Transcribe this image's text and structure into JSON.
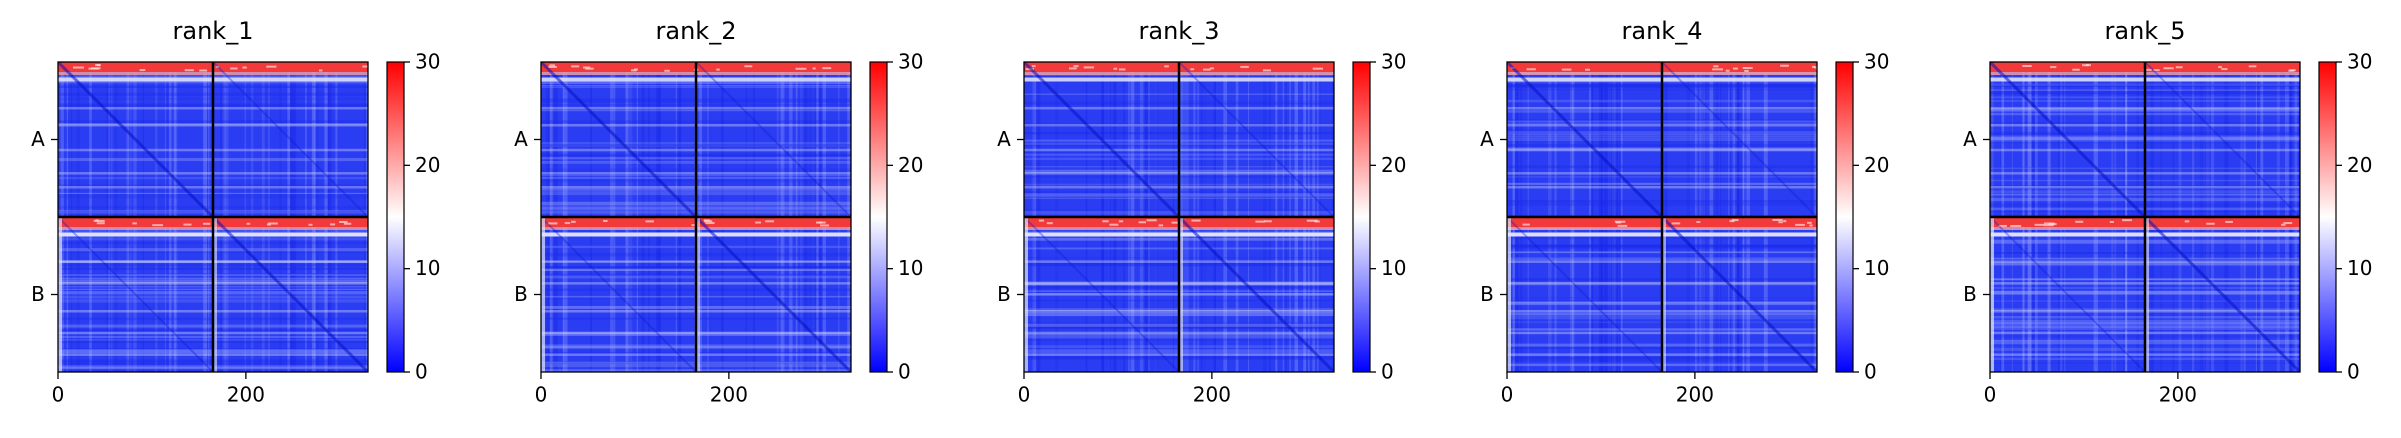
{
  "chart_data": [
    {
      "type": "heatmap",
      "title": "rank_1",
      "x_ticks": [
        0,
        200
      ],
      "y_tick_labels": [
        "A",
        "B"
      ],
      "chain_boundary": 165,
      "xlim": [
        0,
        330
      ],
      "colorbar": {
        "ticks": [
          0,
          10,
          20,
          30
        ],
        "range": [
          0,
          30
        ],
        "colors": [
          "#0000ff",
          "#ffffff",
          "#ff0000"
        ]
      }
    },
    {
      "type": "heatmap",
      "title": "rank_2",
      "x_ticks": [
        0,
        200
      ],
      "y_tick_labels": [
        "A",
        "B"
      ],
      "chain_boundary": 165,
      "xlim": [
        0,
        330
      ],
      "colorbar": {
        "ticks": [
          0,
          10,
          20,
          30
        ],
        "range": [
          0,
          30
        ],
        "colors": [
          "#0000ff",
          "#ffffff",
          "#ff0000"
        ]
      }
    },
    {
      "type": "heatmap",
      "title": "rank_3",
      "x_ticks": [
        0,
        200
      ],
      "y_tick_labels": [
        "A",
        "B"
      ],
      "chain_boundary": 165,
      "xlim": [
        0,
        330
      ],
      "colorbar": {
        "ticks": [
          0,
          10,
          20,
          30
        ],
        "range": [
          0,
          30
        ],
        "colors": [
          "#0000ff",
          "#ffffff",
          "#ff0000"
        ]
      }
    },
    {
      "type": "heatmap",
      "title": "rank_4",
      "x_ticks": [
        0,
        200
      ],
      "y_tick_labels": [
        "A",
        "B"
      ],
      "chain_boundary": 165,
      "xlim": [
        0,
        330
      ],
      "colorbar": {
        "ticks": [
          0,
          10,
          20,
          30
        ],
        "range": [
          0,
          30
        ],
        "colors": [
          "#0000ff",
          "#ffffff",
          "#ff0000"
        ]
      }
    },
    {
      "type": "heatmap",
      "title": "rank_5",
      "x_ticks": [
        0,
        200
      ],
      "y_tick_labels": [
        "A",
        "B"
      ],
      "chain_boundary": 165,
      "xlim": [
        0,
        330
      ],
      "colorbar": {
        "ticks": [
          0,
          10,
          20,
          30
        ],
        "range": [
          0,
          30
        ],
        "colors": [
          "#0000ff",
          "#ffffff",
          "#ff0000"
        ]
      }
    }
  ]
}
